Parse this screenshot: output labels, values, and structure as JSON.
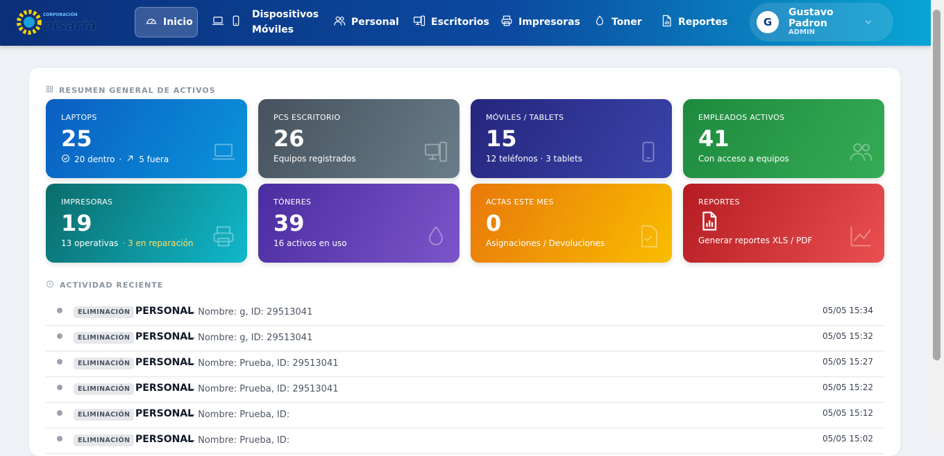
{
  "nav": {
    "logo": {
      "top": "CORPORACIÓN",
      "name": "nisaria"
    },
    "items": [
      "Inicio",
      "Dispositivos Móviles",
      "Personal",
      "Escritorios",
      "Impresoras",
      "Toner",
      "Reportes"
    ],
    "user": {
      "initial": "G",
      "name": "Gustavo Padron",
      "role": "ADMIN"
    }
  },
  "summary": {
    "title": "RESUMEN GENERAL DE ACTIVOS",
    "cards": [
      {
        "label": "LAPTOPS",
        "value": 25,
        "details": [
          "20 dentro",
          "·",
          "5 fuera"
        ]
      },
      {
        "label": "PCS ESCRITORIO",
        "value": 26,
        "details": [
          "Equipos registrados"
        ]
      },
      {
        "label": "MÓVILES / TABLETS",
        "value": 15,
        "details": [
          "12 teléfonos · 3 tablets"
        ]
      },
      {
        "label": "EMPLEADOS ACTIVOS",
        "value": 41,
        "details": [
          "Con acceso a equipos"
        ]
      },
      {
        "label": "IMPRESORAS",
        "value": 19,
        "details": [
          "13 operativas",
          "· 3 en reparación"
        ]
      },
      {
        "label": "TÓNERES",
        "value": 39,
        "details": [
          "16 activos en uso"
        ]
      },
      {
        "label": "ACTAS ESTE MES",
        "value": 0,
        "details": [
          "Asignaciones / Devoluciones"
        ]
      },
      {
        "label": "REPORTES",
        "details": [
          "Generar reportes XLS / PDF"
        ]
      }
    ]
  },
  "activity": {
    "title": "ACTIVIDAD RECIENTE",
    "rows": [
      {
        "type": "ELIMINACIÓN",
        "entity": "PERSONAL",
        "detail": "— Nombre: g, ID: 29513041",
        "time": "05/05 15:34"
      },
      {
        "type": "ELIMINACIÓN",
        "entity": "PERSONAL",
        "detail": "— Nombre: g, ID: 29513041",
        "time": "05/05 15:32"
      },
      {
        "type": "ELIMINACIÓN",
        "entity": "PERSONAL",
        "detail": "— Nombre: Prueba, ID: 29513041",
        "time": "05/05 15:27"
      },
      {
        "type": "ELIMINACIÓN",
        "entity": "PERSONAL",
        "detail": "— Nombre: Prueba, ID: 29513041",
        "time": "05/05 15:22"
      },
      {
        "type": "ELIMINACIÓN",
        "entity": "PERSONAL",
        "detail": "— Nombre: Prueba, ID:",
        "time": "05/05 15:12"
      },
      {
        "type": "ELIMINACIÓN",
        "entity": "PERSONAL",
        "detail": "— Nombre: Prueba, ID:",
        "time": "05/05 15:02"
      }
    ]
  }
}
